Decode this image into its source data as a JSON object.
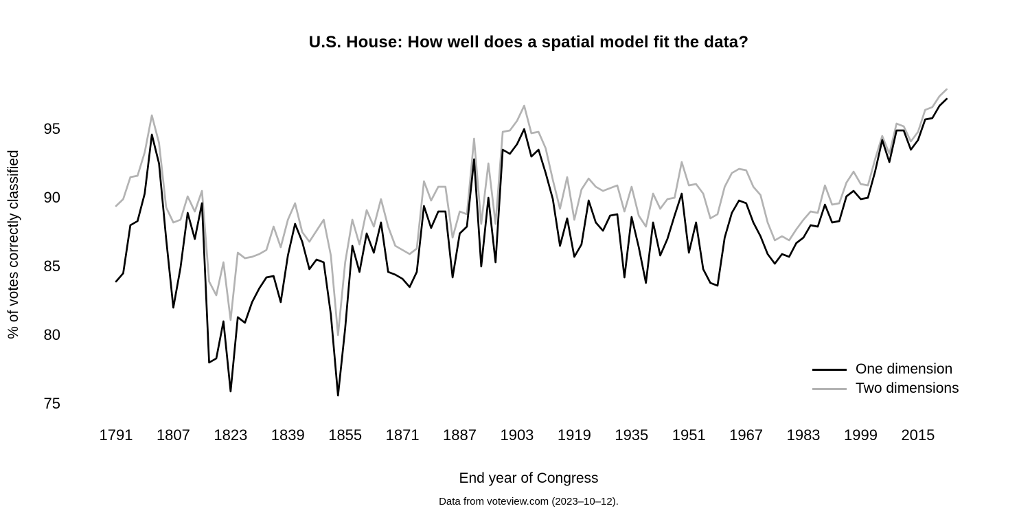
{
  "title": "U.S. House: How well does a spatial model fit the data?",
  "y_axis": {
    "label": "% of votes correctly classified",
    "ticks": [
      95,
      90,
      85,
      80,
      75
    ]
  },
  "x_axis": {
    "label": "End year of Congress",
    "ticks": [
      1791,
      1807,
      1823,
      1839,
      1855,
      1871,
      1887,
      1903,
      1919,
      1935,
      1951,
      1967,
      1983,
      1999,
      2015
    ]
  },
  "caption": "Data from voteview.com (2023–10–12).",
  "legend": [
    {
      "label": "One dimension",
      "color": "#000000"
    },
    {
      "label": "Two dimensions",
      "color": "#b3b3b3"
    }
  ],
  "chart_data": {
    "type": "line",
    "title": "U.S. House: How well does a spatial model fit the data?",
    "xlabel": "End year of Congress",
    "ylabel": "% of votes correctly classified",
    "xlim": [
      1789,
      2026
    ],
    "ylim": [
      73,
      99
    ],
    "grid": false,
    "legend_position": "inside-bottom-right",
    "x": [
      1791,
      1793,
      1795,
      1797,
      1799,
      1801,
      1803,
      1805,
      1807,
      1809,
      1811,
      1813,
      1815,
      1817,
      1819,
      1821,
      1823,
      1825,
      1827,
      1829,
      1831,
      1833,
      1835,
      1837,
      1839,
      1841,
      1843,
      1845,
      1847,
      1849,
      1851,
      1853,
      1855,
      1857,
      1859,
      1861,
      1863,
      1865,
      1867,
      1869,
      1871,
      1873,
      1875,
      1877,
      1879,
      1881,
      1883,
      1885,
      1887,
      1889,
      1891,
      1893,
      1895,
      1897,
      1899,
      1901,
      1903,
      1905,
      1907,
      1909,
      1911,
      1913,
      1915,
      1917,
      1919,
      1921,
      1923,
      1925,
      1927,
      1929,
      1931,
      1933,
      1935,
      1937,
      1939,
      1941,
      1943,
      1945,
      1947,
      1949,
      1951,
      1953,
      1955,
      1957,
      1959,
      1961,
      1963,
      1965,
      1967,
      1969,
      1971,
      1973,
      1975,
      1977,
      1979,
      1981,
      1983,
      1985,
      1987,
      1989,
      1991,
      1993,
      1995,
      1997,
      1999,
      2001,
      2003,
      2005,
      2007,
      2009,
      2011,
      2013,
      2015,
      2017,
      2019,
      2021,
      2023
    ],
    "series": [
      {
        "name": "One dimension",
        "color": "#000000",
        "values": [
          83.9,
          84.5,
          88.0,
          88.3,
          90.3,
          94.6,
          92.5,
          87.0,
          82.0,
          84.9,
          88.9,
          87.0,
          89.6,
          78.0,
          78.3,
          81.0,
          75.9,
          81.3,
          80.9,
          82.4,
          83.4,
          84.2,
          84.3,
          82.4,
          85.8,
          88.1,
          86.8,
          84.8,
          85.5,
          85.3,
          81.5,
          75.6,
          80.5,
          86.5,
          84.6,
          87.4,
          86.0,
          88.2,
          84.6,
          84.4,
          84.1,
          83.5,
          84.6,
          89.4,
          87.8,
          89.0,
          89.0,
          84.2,
          87.4,
          87.9,
          92.8,
          85.0,
          90.0,
          85.3,
          93.5,
          93.2,
          93.9,
          95.0,
          93.0,
          93.5,
          91.8,
          89.9,
          86.5,
          88.5,
          85.7,
          86.6,
          89.8,
          88.2,
          87.6,
          88.7,
          88.8,
          84.2,
          88.6,
          86.4,
          83.8,
          88.2,
          85.8,
          87.0,
          88.7,
          90.3,
          86.0,
          88.2,
          84.8,
          83.8,
          83.6,
          87.1,
          88.9,
          89.8,
          89.6,
          88.2,
          87.2,
          85.9,
          85.2,
          85.9,
          85.7,
          86.7,
          87.1,
          88.0,
          87.9,
          89.5,
          88.2,
          88.3,
          90.1,
          90.5,
          89.9,
          90.0,
          91.9,
          94.2,
          92.6,
          94.9,
          94.9,
          93.5,
          94.2,
          95.7,
          95.8,
          96.7,
          97.2
        ]
      },
      {
        "name": "Two dimensions",
        "color": "#b3b3b3",
        "values": [
          89.4,
          89.9,
          91.5,
          91.6,
          93.3,
          96.0,
          94.0,
          89.3,
          88.2,
          88.4,
          90.1,
          89.0,
          90.5,
          83.9,
          82.9,
          85.3,
          81.1,
          86.0,
          85.6,
          85.7,
          85.9,
          86.2,
          87.9,
          86.4,
          88.4,
          89.6,
          87.5,
          86.8,
          87.6,
          88.4,
          85.8,
          80.0,
          85.3,
          88.4,
          86.6,
          89.1,
          87.9,
          89.9,
          87.9,
          86.5,
          86.2,
          85.9,
          86.3,
          91.2,
          89.8,
          90.8,
          90.8,
          87.1,
          89.0,
          88.8,
          94.3,
          88.1,
          92.5,
          88.1,
          94.8,
          94.9,
          95.6,
          96.7,
          94.7,
          94.8,
          93.6,
          91.3,
          89.2,
          91.5,
          88.4,
          90.6,
          91.4,
          90.8,
          90.5,
          90.7,
          90.9,
          89.0,
          90.8,
          88.7,
          87.9,
          90.3,
          89.2,
          89.9,
          90.0,
          92.6,
          90.9,
          91.0,
          90.3,
          88.5,
          88.8,
          90.8,
          91.8,
          92.1,
          92.0,
          90.8,
          90.2,
          88.2,
          86.9,
          87.2,
          86.9,
          87.7,
          88.4,
          89.0,
          88.9,
          90.9,
          89.5,
          89.6,
          91.1,
          91.9,
          91.0,
          90.9,
          92.8,
          94.5,
          93.2,
          95.4,
          95.2,
          94.1,
          94.8,
          96.4,
          96.6,
          97.4,
          97.9
        ]
      }
    ]
  }
}
